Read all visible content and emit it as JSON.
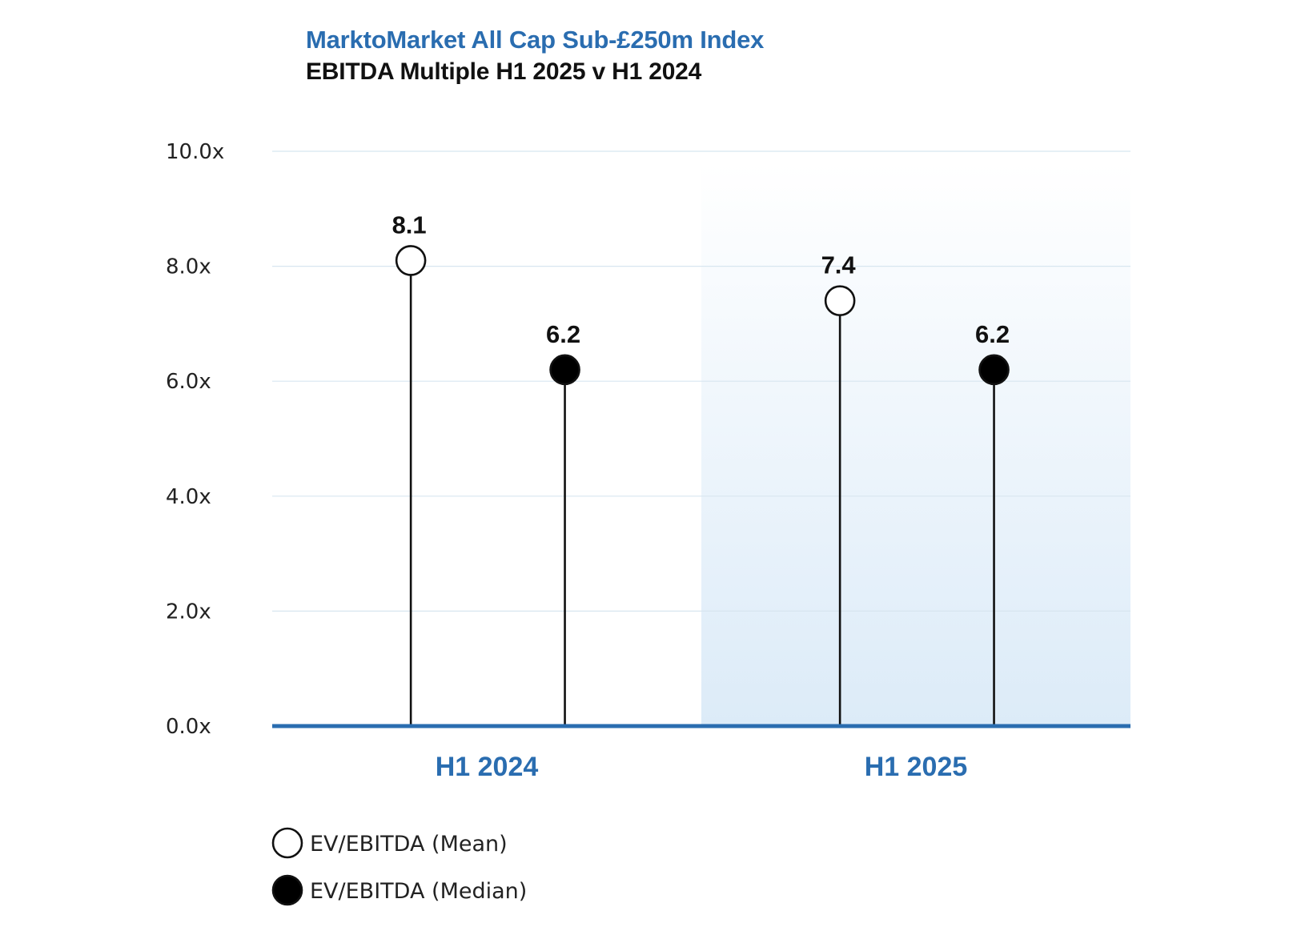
{
  "header": {
    "title": "MarktoMarket All Cap Sub-£250m Index",
    "subtitle": "EBITDA Multiple H1 2025 v H1 2024"
  },
  "colors": {
    "accent": "#2a6db0",
    "title": "#2a6db0",
    "text": "#111111",
    "gridline": "#d8e6f0",
    "highlight_band_top": "#ffffff",
    "highlight_band_bottom": "#dcebf8"
  },
  "chart_data": {
    "type": "lollipop",
    "categories": [
      "H1 2024",
      "H1 2025"
    ],
    "series": [
      {
        "name": "EV/EBITDA (Mean)",
        "marker": "hollow-circle",
        "values": [
          8.1,
          7.4
        ],
        "labels": [
          "8.1",
          "7.4"
        ]
      },
      {
        "name": "EV/EBITDA (Median)",
        "marker": "filled-circle",
        "values": [
          6.2,
          6.2
        ],
        "labels": [
          "6.2",
          "6.2"
        ]
      }
    ],
    "yticks": [
      {
        "value": 0,
        "label": "0.0x"
      },
      {
        "value": 2,
        "label": "2.0x"
      },
      {
        "value": 4,
        "label": "4.0x"
      },
      {
        "value": 6,
        "label": "6.0x"
      },
      {
        "value": 8,
        "label": "8.0x"
      },
      {
        "value": 10,
        "label": "10.0x"
      }
    ],
    "ylim": [
      0,
      10
    ],
    "grid": true,
    "highlighted_category": "H1 2025",
    "legend_placement": "bottom-left"
  }
}
